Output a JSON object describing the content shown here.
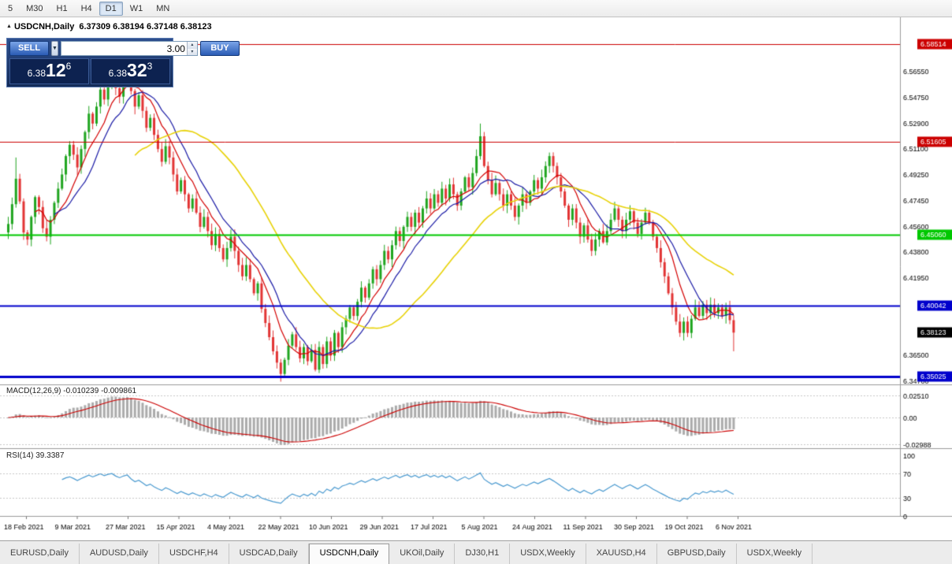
{
  "toolbar": {
    "timeframes": [
      {
        "label": "5",
        "active": false
      },
      {
        "label": "M30",
        "active": false
      },
      {
        "label": "H1",
        "active": false
      },
      {
        "label": "H4",
        "active": false
      },
      {
        "label": "D1",
        "active": true
      },
      {
        "label": "W1",
        "active": false
      },
      {
        "label": "MN",
        "active": false
      }
    ]
  },
  "chart": {
    "symbol_label": "USDCNH,Daily",
    "ohlc_text": "6.37309 6.38194 6.37148 6.38123",
    "current_price": {
      "label": "6.38123",
      "value": 6.38123,
      "color": "#000000"
    },
    "price_axis_ticks": [
      {
        "label": "6.56550",
        "value": 6.5655
      },
      {
        "label": "6.54750",
        "value": 6.5475
      },
      {
        "label": "6.52900",
        "value": 6.529
      },
      {
        "label": "6.51100",
        "value": 6.511
      },
      {
        "label": "6.49250",
        "value": 6.4925
      },
      {
        "label": "6.47450",
        "value": 6.4745
      },
      {
        "label": "6.45600",
        "value": 6.456
      },
      {
        "label": "6.43800",
        "value": 6.438
      },
      {
        "label": "6.41950",
        "value": 6.4195
      },
      {
        "label": "6.36500",
        "value": 6.365
      },
      {
        "label": "6.34700",
        "value": 6.347
      }
    ],
    "levels": [
      {
        "label": "6.58514",
        "value": 6.58514,
        "color": "#cc0000",
        "width": 1
      },
      {
        "label": "6.51605",
        "value": 6.51605,
        "color": "#cc0000",
        "width": 1
      },
      {
        "label": "6.45060",
        "value": 6.4506,
        "color": "#00c800",
        "width": 2
      },
      {
        "label": "6.40042",
        "value": 6.40042,
        "color": "#0000cc",
        "width": 2
      },
      {
        "label": "6.35025",
        "value": 6.35025,
        "color": "#0000cc",
        "width": 3
      }
    ],
    "date_labels": [
      "18 Feb 2021",
      "9 Mar 2021",
      "27 Mar 2021",
      "15 Apr 2021",
      "4 May 2021",
      "22 May 2021",
      "10 Jun 2021",
      "29 Jun 2021",
      "17 Jul 2021",
      "5 Aug 2021",
      "24 Aug 2021",
      "11 Sep 2021",
      "30 Sep 2021",
      "19 Oct 2021",
      "6 Nov 2021"
    ]
  },
  "chart_data": {
    "type": "candlestick",
    "symbol": "USDCNH",
    "timeframe": "Daily",
    "bull_color": "#1fa51f",
    "bear_color": "#e23434",
    "first_open": 6.452,
    "closes": [
      6.458,
      6.472,
      6.49,
      6.474,
      6.452,
      6.447,
      6.463,
      6.477,
      6.47,
      6.455,
      6.449,
      6.461,
      6.473,
      6.483,
      6.493,
      6.506,
      6.514,
      6.507,
      6.498,
      6.511,
      6.523,
      6.536,
      6.529,
      6.541,
      6.553,
      6.546,
      6.557,
      6.563,
      6.554,
      6.548,
      6.559,
      6.566,
      6.552,
      6.541,
      6.549,
      6.538,
      6.526,
      6.533,
      6.521,
      6.511,
      6.502,
      6.513,
      6.505,
      6.493,
      6.481,
      6.489,
      6.479,
      6.469,
      6.476,
      6.466,
      6.456,
      6.463,
      6.453,
      6.443,
      6.451,
      6.441,
      6.433,
      6.441,
      6.449,
      6.439,
      6.429,
      6.421,
      6.429,
      6.419,
      6.409,
      6.416,
      6.398,
      6.388,
      6.378,
      6.368,
      6.36,
      6.352,
      6.362,
      6.372,
      6.38,
      6.371,
      6.363,
      6.371,
      6.361,
      6.369,
      6.355,
      6.371,
      6.359,
      6.375,
      6.365,
      6.381,
      6.371,
      6.385,
      6.391,
      6.399,
      6.393,
      6.403,
      6.413,
      6.406,
      6.416,
      6.426,
      6.419,
      6.429,
      6.439,
      6.433,
      6.443,
      6.453,
      6.446,
      6.456,
      6.463,
      6.456,
      6.466,
      6.459,
      6.469,
      6.476,
      6.469,
      6.479,
      6.473,
      6.483,
      6.476,
      6.486,
      6.479,
      6.471,
      6.481,
      6.491,
      6.484,
      6.494,
      6.506,
      6.52,
      6.499,
      6.489,
      6.479,
      6.487,
      6.479,
      6.471,
      6.479,
      6.471,
      6.463,
      6.471,
      6.479,
      6.473,
      6.481,
      6.489,
      6.483,
      6.491,
      6.499,
      6.506,
      6.499,
      6.491,
      6.481,
      6.471,
      6.461,
      6.469,
      6.459,
      6.449,
      6.457,
      6.447,
      6.439,
      6.447,
      6.453,
      6.445,
      6.453,
      6.461,
      6.469,
      6.461,
      6.453,
      6.461,
      6.467,
      6.459,
      6.451,
      6.459,
      6.466,
      6.459,
      6.449,
      6.441,
      6.431,
      6.421,
      6.409,
      6.399,
      6.389,
      6.381,
      6.389,
      6.381,
      6.391,
      6.399,
      6.393,
      6.401,
      6.395,
      6.401,
      6.395,
      6.399,
      6.393,
      6.399,
      6.39,
      6.38123
    ],
    "wick_overrides": {
      "2": {
        "high": 6.505
      },
      "31": {
        "high": 6.5715
      },
      "71": {
        "low": 6.347
      },
      "123": {
        "high": 6.529
      },
      "189": {
        "low": 6.368
      }
    },
    "moving_averages": [
      {
        "name": "fast-ma",
        "period": 8,
        "color": "#d40000"
      },
      {
        "name": "mid-ma",
        "period": 13,
        "color": "#1a1aa6"
      },
      {
        "name": "slow-ma",
        "period": 34,
        "color": "#e8d206"
      }
    ],
    "y_range_hint": [
      6.3446,
      6.6041
    ]
  },
  "macd": {
    "label": "MACD(12,26,9) -0.010239 -0.009861",
    "fast": 12,
    "slow": 26,
    "signal": 9,
    "main_value": "-0.010239",
    "signal_value": "-0.009861",
    "axis_ticks": [
      {
        "label": "0.02510",
        "value": 0.0251
      },
      {
        "label": "0.00",
        "value": 0
      },
      {
        "label": "-0.02988",
        "value": -0.02988
      }
    ],
    "histogram_color": "#ababab",
    "signal_color": "#cc0000"
  },
  "rsi": {
    "label": "RSI(14) 39.3387",
    "period": 14,
    "value": "39.3387",
    "axis_ticks": [
      {
        "label": "100",
        "value": 100
      },
      {
        "label": "70",
        "value": 70
      },
      {
        "label": "30",
        "value": 30
      },
      {
        "label": "0",
        "value": 0
      }
    ],
    "levels": [
      70,
      30
    ],
    "line_color": "#4a9ad0"
  },
  "trade_panel": {
    "sell_label": "SELL",
    "buy_label": "BUY",
    "volume": "3.00",
    "dropdown_icon": "▼",
    "spin_up": "▴",
    "spin_down": "▾",
    "bid": {
      "prefix": "6.38",
      "big": "12",
      "sup": "6"
    },
    "ask": {
      "prefix": "6.38",
      "big": "32",
      "sup": "3"
    }
  },
  "tabs": {
    "active_index": 4,
    "items": [
      "EURUSD,Daily",
      "AUDUSD,Daily",
      "USDCHF,H4",
      "USDCAD,Daily",
      "USDCNH,Daily",
      "UKOil,Daily",
      "DJ30,H1",
      "USDX,Weekly",
      "XAUUSD,H4",
      "GBPUSD,Daily",
      "USDX,Weekly"
    ]
  }
}
